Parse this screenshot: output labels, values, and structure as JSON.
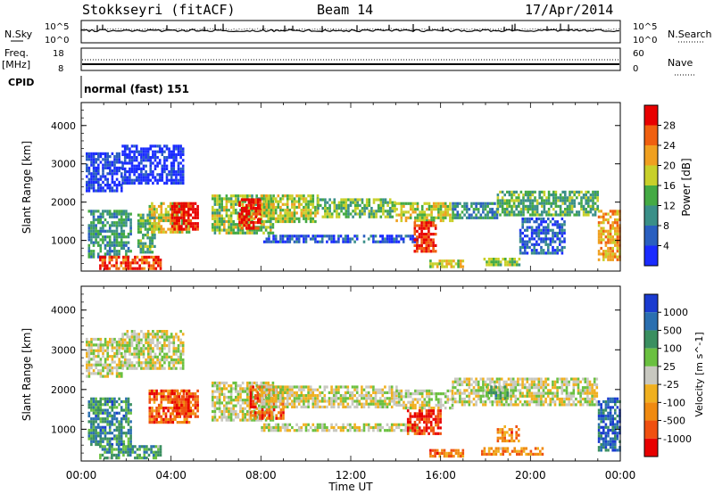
{
  "header": {
    "station": "Stokkseyri (fitACF)",
    "beam": "Beam 14",
    "date": "17/Apr/2014"
  },
  "strip_labels": {
    "nsky": "N.Sky",
    "nsearch": "N.Search",
    "freq": "Freq.",
    "freq_unit": "[MHz]",
    "nave": "Nave",
    "cpid": "CPID",
    "cpid_value": "normal (fast) 151"
  },
  "strip_ticks": {
    "noise_top": "10^5",
    "noise_bottom": "10^0",
    "freq_top": "18",
    "freq_bottom": "8",
    "nave_top": "60",
    "nave_bottom": "0"
  },
  "chart_data": [
    {
      "type": "heatmap",
      "panel": "power",
      "ylabel": "Slant Range [km]",
      "xlabel": "",
      "ylim": [
        200,
        4600
      ],
      "yticks": [
        1000,
        2000,
        3000,
        4000
      ],
      "xlim_hours": [
        0,
        24
      ],
      "colorbar": {
        "label": "Power [dB]",
        "range": [
          0,
          32
        ],
        "ticks": [
          "4",
          "8",
          "12",
          "16",
          "20",
          "24",
          "28"
        ],
        "colors": [
          "#1a2bff",
          "#2a5fc0",
          "#3a8f88",
          "#44aa44",
          "#c8d02a",
          "#f0a020",
          "#f06010",
          "#e80000"
        ]
      },
      "echo_bands": [
        {
          "t0": 0.2,
          "t1": 1.8,
          "r0": 2300,
          "r1": 3300,
          "level": 0.1
        },
        {
          "t0": 1.8,
          "t1": 4.5,
          "r0": 2500,
          "r1": 3500,
          "level": 0.05
        },
        {
          "t0": 0.3,
          "t1": 2.2,
          "r0": 600,
          "r1": 1800,
          "level": 0.35
        },
        {
          "t0": 0.8,
          "t1": 3.5,
          "r0": 300,
          "r1": 600,
          "level": 0.85
        },
        {
          "t0": 2.5,
          "t1": 3.3,
          "r0": 700,
          "r1": 1700,
          "level": 0.4
        },
        {
          "t0": 3.0,
          "t1": 4.8,
          "r0": 1200,
          "r1": 2000,
          "level": 0.6
        },
        {
          "t0": 4.0,
          "t1": 5.2,
          "r0": 1300,
          "r1": 2000,
          "level": 0.95
        },
        {
          "t0": 5.8,
          "t1": 8.5,
          "r0": 1200,
          "r1": 2200,
          "level": 0.5
        },
        {
          "t0": 7.0,
          "t1": 8.0,
          "r0": 1300,
          "r1": 2100,
          "level": 0.95
        },
        {
          "t0": 8.0,
          "t1": 10.5,
          "r0": 1500,
          "r1": 2200,
          "level": 0.55
        },
        {
          "t0": 10.5,
          "t1": 14.0,
          "r0": 1650,
          "r1": 2100,
          "level": 0.45
        },
        {
          "t0": 14.0,
          "t1": 16.5,
          "r0": 1500,
          "r1": 2000,
          "level": 0.55
        },
        {
          "t0": 16.5,
          "t1": 18.5,
          "r0": 1600,
          "r1": 2000,
          "level": 0.3
        },
        {
          "t0": 18.5,
          "t1": 23.0,
          "r0": 1700,
          "r1": 2300,
          "level": 0.4
        },
        {
          "t0": 23.0,
          "t1": 24.0,
          "r0": 500,
          "r1": 1800,
          "level": 0.7
        },
        {
          "t0": 8.0,
          "t1": 15.0,
          "r0": 950,
          "r1": 1150,
          "level": 0.15
        },
        {
          "t0": 14.8,
          "t1": 15.8,
          "r0": 700,
          "r1": 1500,
          "level": 0.9
        },
        {
          "t0": 15.5,
          "t1": 17.0,
          "r0": 330,
          "r1": 500,
          "level": 0.6
        },
        {
          "t0": 17.8,
          "t1": 19.5,
          "r0": 350,
          "r1": 550,
          "level": 0.5
        },
        {
          "t0": 19.5,
          "t1": 21.5,
          "r0": 700,
          "r1": 1600,
          "level": 0.2
        }
      ]
    },
    {
      "type": "heatmap",
      "panel": "velocity",
      "ylabel": "Slant Range [km]",
      "xlabel": "Time UT",
      "ylim": [
        200,
        4600
      ],
      "yticks": [
        1000,
        2000,
        3000,
        4000
      ],
      "xlim_hours": [
        0,
        24
      ],
      "xticks": [
        "00:00",
        "04:00",
        "08:00",
        "12:00",
        "16:00",
        "20:00",
        "00:00"
      ],
      "colorbar": {
        "label": "Velocity [m s^-1]",
        "range": [
          -1200,
          1200
        ],
        "ticks": [
          "1000",
          "500",
          "100",
          "25",
          "-25",
          "-100",
          "-500",
          "-1000"
        ],
        "colors": [
          "#e80000",
          "#f05010",
          "#f08a10",
          "#f0b020",
          "#c8c8c0",
          "#6ac040",
          "#3a8f60",
          "#2a6fb0",
          "#1a3bd0"
        ]
      },
      "echo_bands": [
        {
          "t0": 0.2,
          "t1": 1.8,
          "r0": 2300,
          "r1": 3300,
          "level": 0.5
        },
        {
          "t0": 1.8,
          "t1": 4.5,
          "r0": 2500,
          "r1": 3500,
          "level": 0.5
        },
        {
          "t0": 0.3,
          "t1": 2.2,
          "r0": 600,
          "r1": 1800,
          "level": 0.75
        },
        {
          "t0": 0.8,
          "t1": 3.5,
          "r0": 300,
          "r1": 600,
          "level": 0.7
        },
        {
          "t0": 3.0,
          "t1": 4.8,
          "r0": 1200,
          "r1": 2000,
          "level": 0.2
        },
        {
          "t0": 4.0,
          "t1": 5.2,
          "r0": 1300,
          "r1": 2000,
          "level": 0.15
        },
        {
          "t0": 5.8,
          "t1": 8.5,
          "r0": 1200,
          "r1": 2200,
          "level": 0.5
        },
        {
          "t0": 7.5,
          "t1": 9.0,
          "r0": 1300,
          "r1": 2100,
          "level": 0.2
        },
        {
          "t0": 8.0,
          "t1": 14.0,
          "r0": 1550,
          "r1": 2100,
          "level": 0.5
        },
        {
          "t0": 14.0,
          "t1": 16.5,
          "r0": 1500,
          "r1": 2000,
          "level": 0.5
        },
        {
          "t0": 16.5,
          "t1": 23.0,
          "r0": 1600,
          "r1": 2300,
          "level": 0.5
        },
        {
          "t0": 18.0,
          "t1": 19.0,
          "r0": 1800,
          "r1": 2100,
          "level": 0.65
        },
        {
          "t0": 23.0,
          "t1": 24.0,
          "r0": 500,
          "r1": 1800,
          "level": 0.85
        },
        {
          "t0": 8.0,
          "t1": 15.0,
          "r0": 950,
          "r1": 1150,
          "level": 0.5
        },
        {
          "t0": 14.5,
          "t1": 16.0,
          "r0": 900,
          "r1": 1500,
          "level": 0.1
        },
        {
          "t0": 15.5,
          "t1": 17.0,
          "r0": 330,
          "r1": 500,
          "level": 0.25
        },
        {
          "t0": 17.8,
          "t1": 20.5,
          "r0": 350,
          "r1": 550,
          "level": 0.3
        },
        {
          "t0": 18.5,
          "t1": 19.5,
          "r0": 700,
          "r1": 1100,
          "level": 0.25
        }
      ]
    }
  ]
}
